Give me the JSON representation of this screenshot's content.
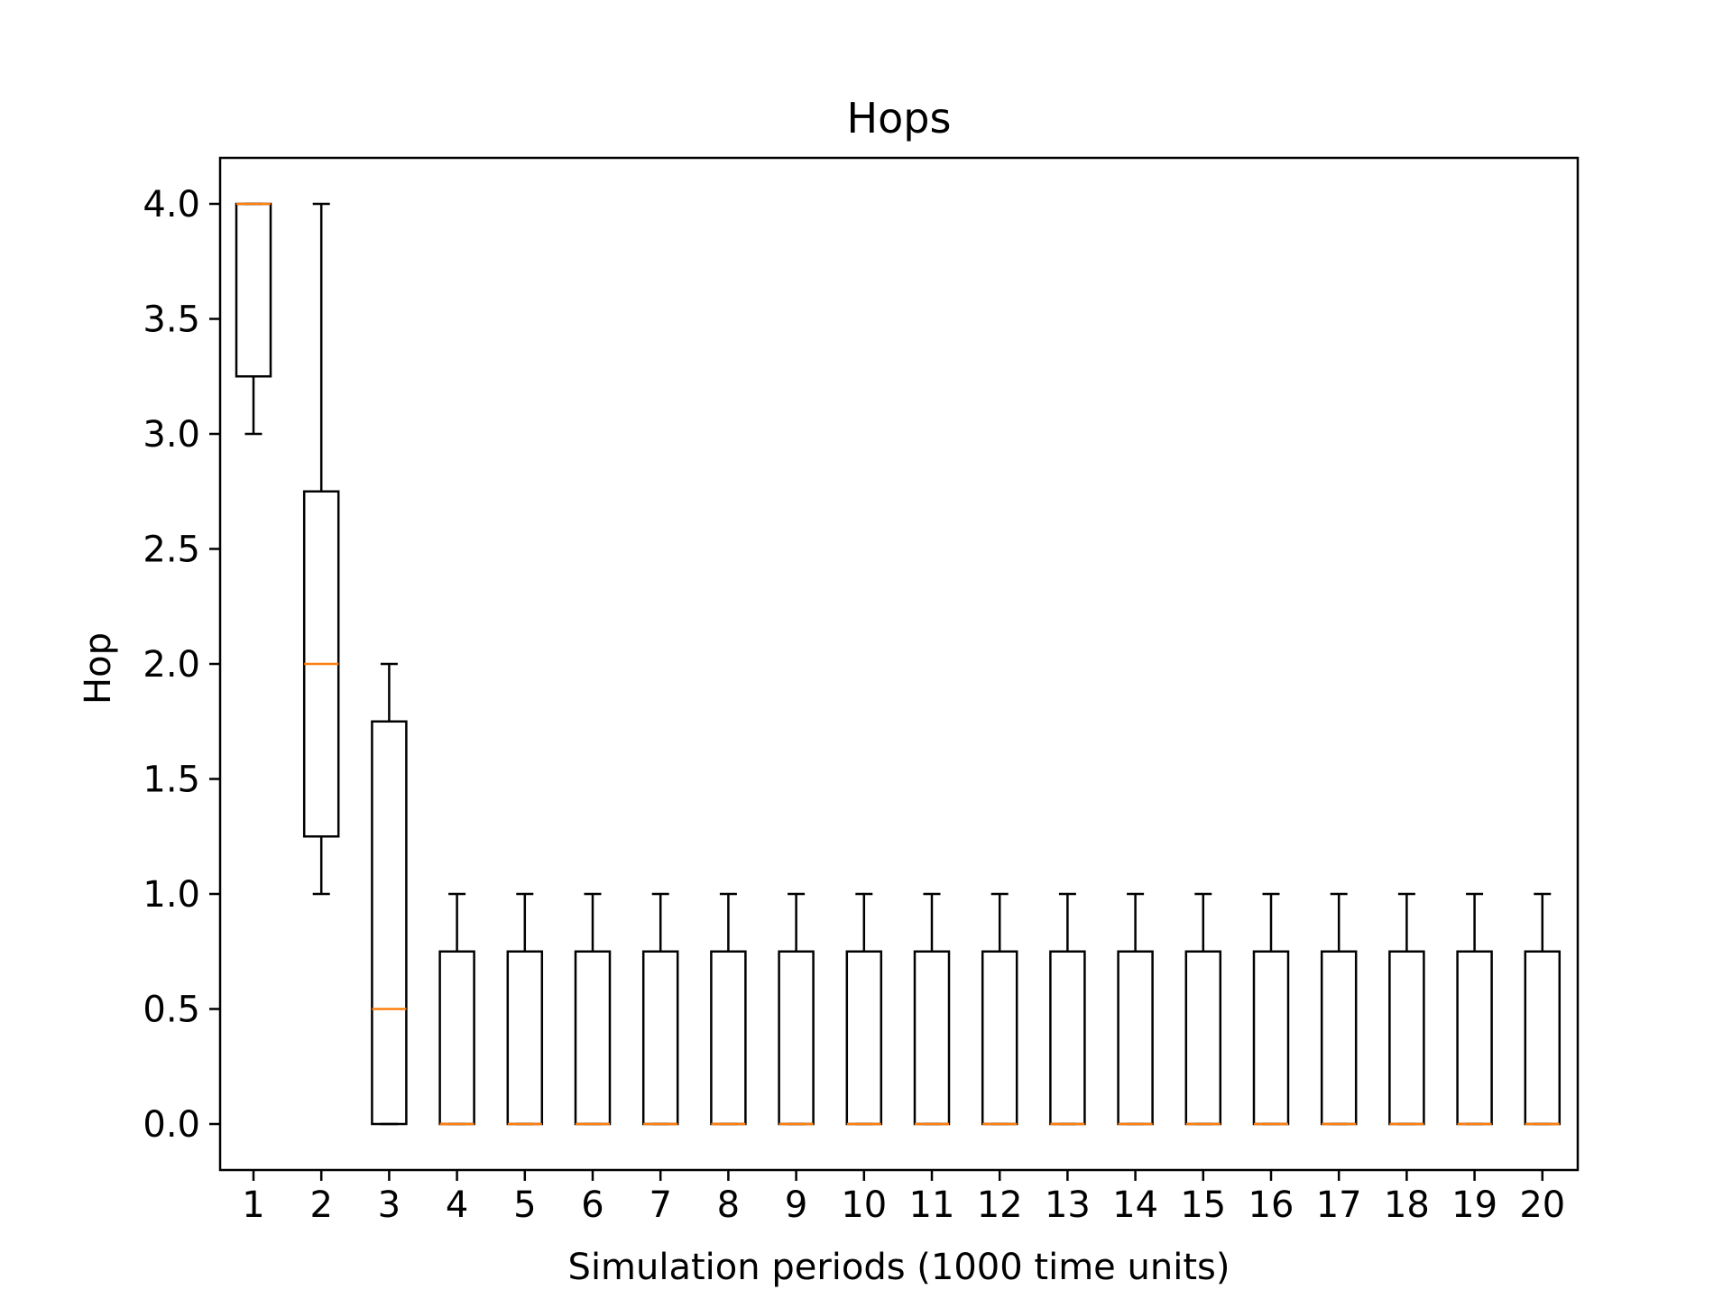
{
  "chart_data": {
    "type": "box",
    "title": "Hops",
    "xlabel": "Simulation periods (1000 time units)",
    "ylabel": "Hop",
    "ylim": [
      -0.2,
      4.2
    ],
    "yticks": [
      0.0,
      0.5,
      1.0,
      1.5,
      2.0,
      2.5,
      3.0,
      3.5,
      4.0
    ],
    "ytick_labels": [
      "0.0",
      "0.5",
      "1.0",
      "1.5",
      "2.0",
      "2.5",
      "3.0",
      "3.5",
      "4.0"
    ],
    "categories": [
      "1",
      "2",
      "3",
      "4",
      "5",
      "6",
      "7",
      "8",
      "9",
      "10",
      "11",
      "12",
      "13",
      "14",
      "15",
      "16",
      "17",
      "18",
      "19",
      "20"
    ],
    "boxes": [
      {
        "whisker_low": 3.0,
        "q1": 3.25,
        "median": 4.0,
        "q3": 4.0,
        "whisker_high": 4.0
      },
      {
        "whisker_low": 1.0,
        "q1": 1.25,
        "median": 2.0,
        "q3": 2.75,
        "whisker_high": 4.0
      },
      {
        "whisker_low": 0.0,
        "q1": 0.0,
        "median": 0.5,
        "q3": 1.75,
        "whisker_high": 2.0
      },
      {
        "whisker_low": 0.0,
        "q1": 0.0,
        "median": 0.0,
        "q3": 0.75,
        "whisker_high": 1.0
      },
      {
        "whisker_low": 0.0,
        "q1": 0.0,
        "median": 0.0,
        "q3": 0.75,
        "whisker_high": 1.0
      },
      {
        "whisker_low": 0.0,
        "q1": 0.0,
        "median": 0.0,
        "q3": 0.75,
        "whisker_high": 1.0
      },
      {
        "whisker_low": 0.0,
        "q1": 0.0,
        "median": 0.0,
        "q3": 0.75,
        "whisker_high": 1.0
      },
      {
        "whisker_low": 0.0,
        "q1": 0.0,
        "median": 0.0,
        "q3": 0.75,
        "whisker_high": 1.0
      },
      {
        "whisker_low": 0.0,
        "q1": 0.0,
        "median": 0.0,
        "q3": 0.75,
        "whisker_high": 1.0
      },
      {
        "whisker_low": 0.0,
        "q1": 0.0,
        "median": 0.0,
        "q3": 0.75,
        "whisker_high": 1.0
      },
      {
        "whisker_low": 0.0,
        "q1": 0.0,
        "median": 0.0,
        "q3": 0.75,
        "whisker_high": 1.0
      },
      {
        "whisker_low": 0.0,
        "q1": 0.0,
        "median": 0.0,
        "q3": 0.75,
        "whisker_high": 1.0
      },
      {
        "whisker_low": 0.0,
        "q1": 0.0,
        "median": 0.0,
        "q3": 0.75,
        "whisker_high": 1.0
      },
      {
        "whisker_low": 0.0,
        "q1": 0.0,
        "median": 0.0,
        "q3": 0.75,
        "whisker_high": 1.0
      },
      {
        "whisker_low": 0.0,
        "q1": 0.0,
        "median": 0.0,
        "q3": 0.75,
        "whisker_high": 1.0
      },
      {
        "whisker_low": 0.0,
        "q1": 0.0,
        "median": 0.0,
        "q3": 0.75,
        "whisker_high": 1.0
      },
      {
        "whisker_low": 0.0,
        "q1": 0.0,
        "median": 0.0,
        "q3": 0.75,
        "whisker_high": 1.0
      },
      {
        "whisker_low": 0.0,
        "q1": 0.0,
        "median": 0.0,
        "q3": 0.75,
        "whisker_high": 1.0
      },
      {
        "whisker_low": 0.0,
        "q1": 0.0,
        "median": 0.0,
        "q3": 0.75,
        "whisker_high": 1.0
      },
      {
        "whisker_low": 0.0,
        "q1": 0.0,
        "median": 0.0,
        "q3": 0.75,
        "whisker_high": 1.0
      }
    ],
    "grid": false,
    "colors": {
      "box": "#000000",
      "median": "#ff7f0e"
    }
  }
}
